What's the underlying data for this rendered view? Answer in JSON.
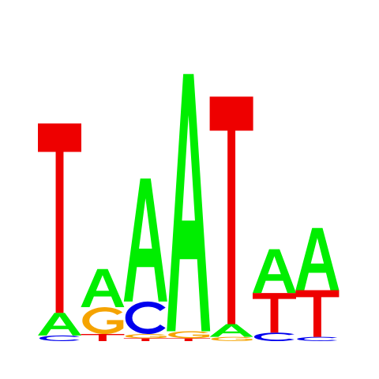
{
  "chart_data": {
    "type": "sequence_logo",
    "alphabet": [
      "A",
      "C",
      "G",
      "T"
    ],
    "colors": {
      "A": "#00ee00",
      "C": "#0000ee",
      "G": "#f5a300",
      "T": "#ee0000"
    },
    "unit": "bits",
    "ylim": [
      0,
      2
    ],
    "positions": [
      {
        "index": 1,
        "letters": [
          {
            "base": "C",
            "height": 0.04
          },
          {
            "base": "A",
            "height": 0.16
          },
          {
            "base": "T",
            "height": 1.34
          }
        ]
      },
      {
        "index": 2,
        "letters": [
          {
            "base": "T",
            "height": 0.05
          },
          {
            "base": "G",
            "height": 0.19
          },
          {
            "base": "A",
            "height": 0.27
          }
        ]
      },
      {
        "index": 3,
        "letters": [
          {
            "base": "T",
            "height": 0.02
          },
          {
            "base": "G",
            "height": 0.03
          },
          {
            "base": "C",
            "height": 0.23
          },
          {
            "base": "A",
            "height": 0.87
          }
        ]
      },
      {
        "index": 4,
        "letters": [
          {
            "base": "T",
            "height": 0.02
          },
          {
            "base": "G",
            "height": 0.05
          },
          {
            "base": "A",
            "height": 1.82
          }
        ]
      },
      {
        "index": 5,
        "letters": [
          {
            "base": "G",
            "height": 0.03
          },
          {
            "base": "A",
            "height": 0.09
          },
          {
            "base": "T",
            "height": 1.61
          }
        ]
      },
      {
        "index": 6,
        "letters": [
          {
            "base": "C",
            "height": 0.06
          },
          {
            "base": "T",
            "height": 0.28
          },
          {
            "base": "A",
            "height": 0.31
          }
        ]
      },
      {
        "index": 7,
        "letters": [
          {
            "base": "C",
            "height": 0.03
          },
          {
            "base": "T",
            "height": 0.33
          },
          {
            "base": "A",
            "height": 0.44
          }
        ]
      }
    ]
  }
}
